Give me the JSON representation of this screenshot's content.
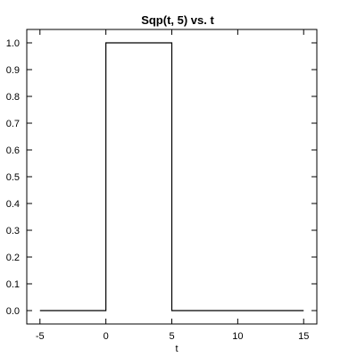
{
  "chart_data": {
    "type": "line",
    "title": "Sqp(t, 5) vs. t",
    "xlabel": "t",
    "ylabel": "",
    "xlim": [
      -6,
      16
    ],
    "ylim": [
      -0.05,
      1.05
    ],
    "xticks": [
      -5,
      0,
      5,
      10,
      15
    ],
    "xtick_labels": [
      "-5",
      "0",
      "5",
      "10",
      "15"
    ],
    "yticks": [
      0.0,
      0.1,
      0.2,
      0.3,
      0.4,
      0.5,
      0.6,
      0.7,
      0.8,
      0.9,
      1.0
    ],
    "ytick_labels": [
      "0.0",
      "0.1",
      "0.2",
      "0.3",
      "0.4",
      "0.5",
      "0.6",
      "0.7",
      "0.8",
      "0.9",
      "1.0"
    ],
    "grid": false,
    "series": [
      {
        "x": [
          -5,
          0,
          0,
          5,
          5,
          15
        ],
        "y": [
          0,
          0,
          1,
          1,
          0,
          0
        ],
        "color": "#000000"
      }
    ]
  }
}
